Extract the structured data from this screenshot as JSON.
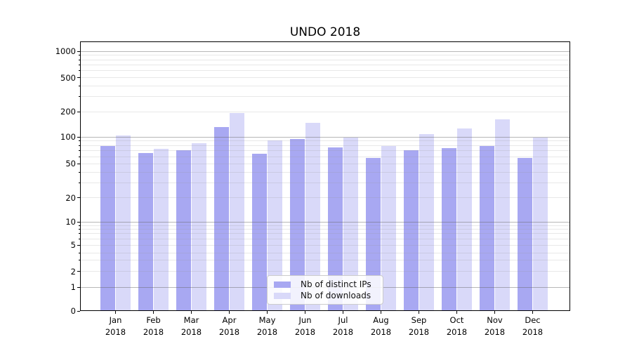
{
  "title": "UNDO 2018",
  "chart_data": {
    "type": "bar",
    "title": "UNDO 2018",
    "months": [
      "Jan",
      "Feb",
      "Mar",
      "Apr",
      "May",
      "Jun",
      "Jul",
      "Aug",
      "Sep",
      "Oct",
      "Nov",
      "Dec"
    ],
    "year": "2018",
    "categories": [
      "Jan 2018",
      "Feb 2018",
      "Mar 2018",
      "Apr 2018",
      "May 2018",
      "Jun 2018",
      "Jul 2018",
      "Aug 2018",
      "Sep 2018",
      "Oct 2018",
      "Nov 2018",
      "Dec 2018"
    ],
    "series": [
      {
        "name": "Nb of distinct IPs",
        "color": "#a8a8f2",
        "values": [
          79,
          66,
          71,
          130,
          65,
          95,
          76,
          58,
          71,
          75,
          79,
          58
        ]
      },
      {
        "name": "Nb of downloads",
        "color": "#d9d9f9",
        "values": [
          104,
          74,
          85,
          192,
          91,
          148,
          98,
          79,
          108,
          127,
          161,
          99
        ]
      }
    ],
    "yscale": "symlog",
    "ylim": [
      0,
      1300
    ],
    "y_tick_values": [
      0,
      1,
      2,
      5,
      10,
      20,
      50,
      100,
      200,
      500,
      1000
    ],
    "y_tick_labels": [
      "0",
      "1",
      "2",
      "5",
      "10",
      "20",
      "50",
      "100",
      "200",
      "500",
      "1000"
    ],
    "y_major_gridlines": [
      1,
      10,
      100,
      1000
    ],
    "grid": true,
    "legend_position": "lower center",
    "bar_width": 0.4,
    "colors": {
      "distinct_ips": "#a8a8f2",
      "downloads": "#d9d9f9",
      "major_grid": "#9b9b9b",
      "minor_grid": "#e4e4e4",
      "axis": "#000000",
      "background": "#ffffff"
    }
  }
}
